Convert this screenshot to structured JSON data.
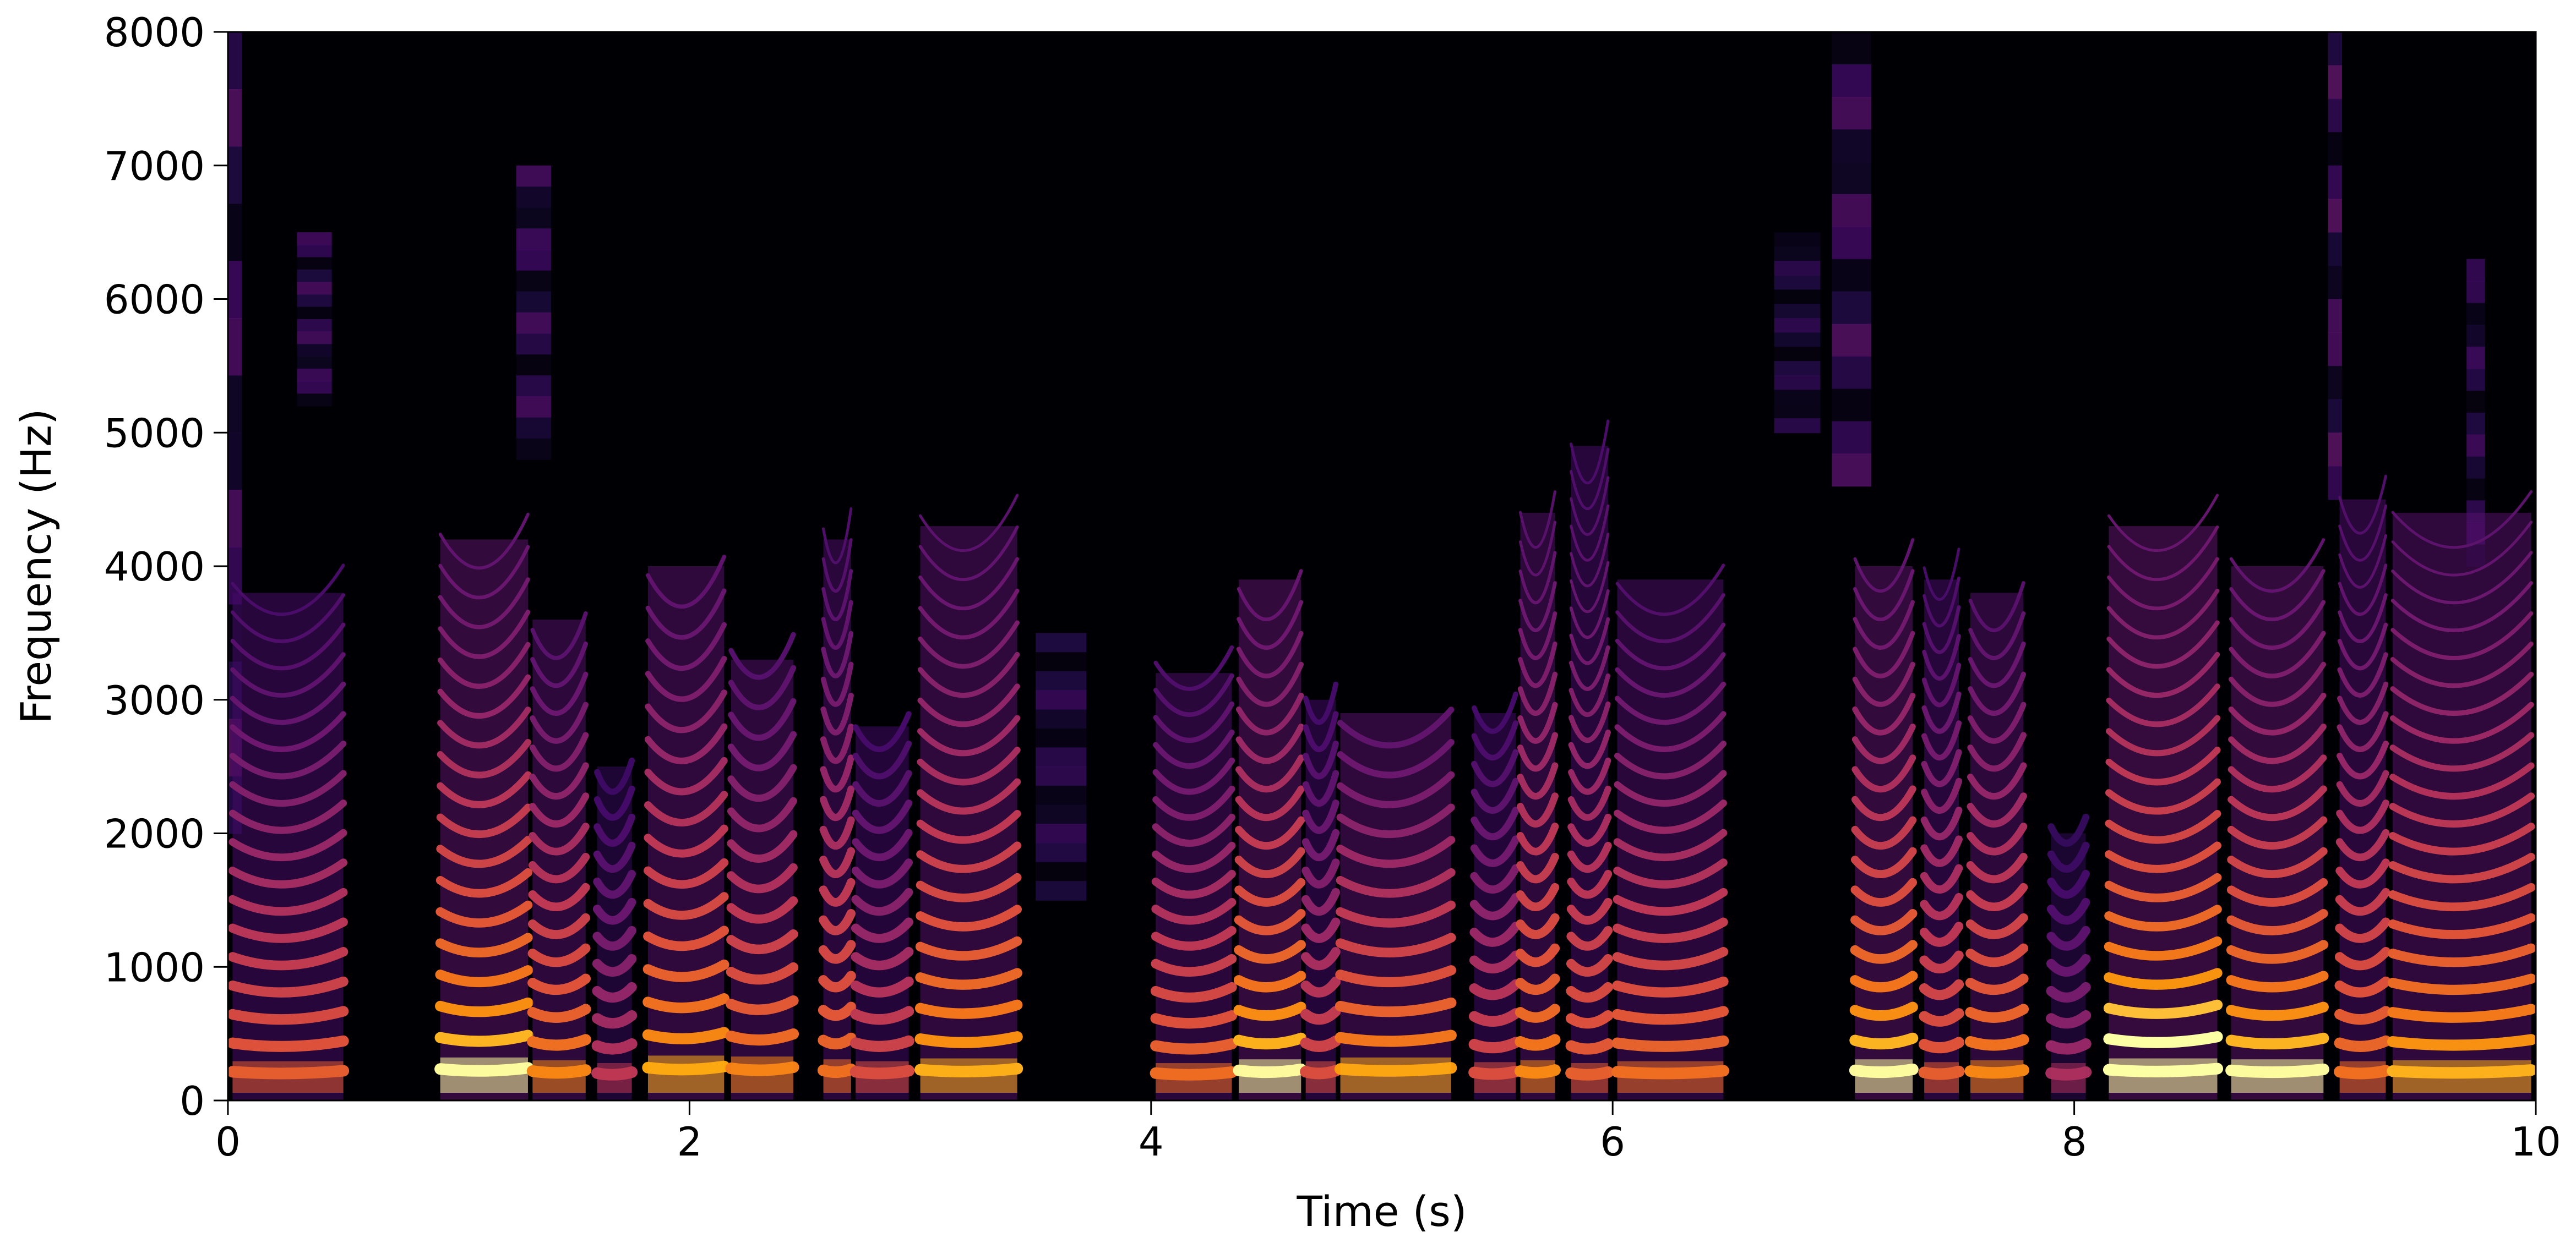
{
  "chart_data": {
    "type": "heatmap",
    "subtype": "spectrogram",
    "title": "",
    "xlabel": "Time (s)",
    "ylabel": "Frequency (Hz)",
    "xlim": [
      0,
      10
    ],
    "ylim": [
      0,
      8000
    ],
    "xticks": [
      0,
      2,
      4,
      6,
      8,
      10
    ],
    "xtick_labels": [
      "0",
      "2",
      "4",
      "6",
      "8",
      "10"
    ],
    "yticks": [
      0,
      1000,
      2000,
      3000,
      4000,
      5000,
      6000,
      7000,
      8000
    ],
    "ytick_labels": [
      "0",
      "1000",
      "2000",
      "3000",
      "4000",
      "5000",
      "6000",
      "7000",
      "8000"
    ],
    "colormap": "inferno",
    "colorbar": false,
    "grid": false,
    "voiced_segments": [
      {
        "start": 0.02,
        "end": 0.5,
        "f0": 210,
        "top_hz": 3800,
        "level": 0.75
      },
      {
        "start": 0.92,
        "end": 1.3,
        "f0": 230,
        "top_hz": 4200,
        "level": 0.95
      },
      {
        "start": 1.32,
        "end": 1.55,
        "f0": 215,
        "top_hz": 3600,
        "level": 0.85
      },
      {
        "start": 1.6,
        "end": 1.75,
        "f0": 200,
        "top_hz": 2500,
        "level": 0.6
      },
      {
        "start": 1.82,
        "end": 2.15,
        "f0": 240,
        "top_hz": 4000,
        "level": 0.9
      },
      {
        "start": 2.18,
        "end": 2.45,
        "f0": 235,
        "top_hz": 3300,
        "level": 0.85
      },
      {
        "start": 2.58,
        "end": 2.7,
        "f0": 220,
        "top_hz": 4200,
        "level": 0.8
      },
      {
        "start": 2.72,
        "end": 2.95,
        "f0": 210,
        "top_hz": 2800,
        "level": 0.7
      },
      {
        "start": 3.0,
        "end": 3.42,
        "f0": 225,
        "top_hz": 4300,
        "level": 0.9
      },
      {
        "start": 4.02,
        "end": 4.35,
        "f0": 200,
        "top_hz": 3200,
        "level": 0.8
      },
      {
        "start": 4.38,
        "end": 4.65,
        "f0": 220,
        "top_hz": 3900,
        "level": 0.95
      },
      {
        "start": 4.67,
        "end": 4.8,
        "f0": 210,
        "top_hz": 3000,
        "level": 0.7
      },
      {
        "start": 4.82,
        "end": 5.3,
        "f0": 230,
        "top_hz": 2900,
        "level": 0.9
      },
      {
        "start": 5.4,
        "end": 5.58,
        "f0": 205,
        "top_hz": 2900,
        "level": 0.7
      },
      {
        "start": 5.6,
        "end": 5.75,
        "f0": 215,
        "top_hz": 4400,
        "level": 0.85
      },
      {
        "start": 5.82,
        "end": 5.98,
        "f0": 200,
        "top_hz": 4900,
        "level": 0.75
      },
      {
        "start": 6.02,
        "end": 6.48,
        "f0": 210,
        "top_hz": 3900,
        "level": 0.8
      },
      {
        "start": 7.05,
        "end": 7.3,
        "f0": 220,
        "top_hz": 4000,
        "level": 0.95
      },
      {
        "start": 7.35,
        "end": 7.5,
        "f0": 205,
        "top_hz": 3900,
        "level": 0.75
      },
      {
        "start": 7.55,
        "end": 7.78,
        "f0": 215,
        "top_hz": 3800,
        "level": 0.85
      },
      {
        "start": 7.9,
        "end": 8.05,
        "f0": 200,
        "top_hz": 2000,
        "level": 0.55
      },
      {
        "start": 8.15,
        "end": 8.62,
        "f0": 225,
        "top_hz": 4300,
        "level": 1.0
      },
      {
        "start": 8.68,
        "end": 9.08,
        "f0": 220,
        "top_hz": 4000,
        "level": 0.95
      },
      {
        "start": 9.15,
        "end": 9.35,
        "f0": 210,
        "top_hz": 4500,
        "level": 0.8
      },
      {
        "start": 9.38,
        "end": 9.98,
        "f0": 215,
        "top_hz": 4400,
        "level": 0.9
      }
    ],
    "fricatives": [
      {
        "start": 0.0,
        "end": 0.06,
        "low_hz": 2000,
        "high_hz": 8000,
        "level": 0.55
      },
      {
        "start": 0.3,
        "end": 0.45,
        "low_hz": 5200,
        "high_hz": 6500,
        "level": 0.5
      },
      {
        "start": 1.25,
        "end": 1.4,
        "low_hz": 4800,
        "high_hz": 7000,
        "level": 0.5
      },
      {
        "start": 3.5,
        "end": 3.72,
        "low_hz": 1500,
        "high_hz": 3500,
        "level": 0.4
      },
      {
        "start": 6.7,
        "end": 6.9,
        "low_hz": 5000,
        "high_hz": 6500,
        "level": 0.35
      },
      {
        "start": 6.95,
        "end": 7.12,
        "low_hz": 4600,
        "high_hz": 8000,
        "level": 0.55
      },
      {
        "start": 9.1,
        "end": 9.16,
        "low_hz": 4500,
        "high_hz": 8000,
        "level": 0.6
      },
      {
        "start": 9.7,
        "end": 9.78,
        "low_hz": 4000,
        "high_hz": 6300,
        "level": 0.45
      }
    ]
  }
}
